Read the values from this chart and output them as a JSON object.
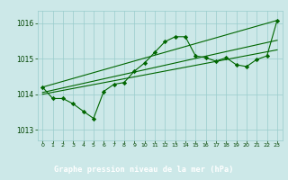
{
  "bg_color": "#cce8e8",
  "plot_bg_color": "#cce8e8",
  "label_bg_color": "#1a5c1a",
  "grid_color": "#99cccc",
  "line_color": "#006600",
  "marker_color": "#006600",
  "title": "Graphe pression niveau de la mer (hPa)",
  "title_color": "#ffffff",
  "tick_color": "#004400",
  "xlim": [
    -0.5,
    23.5
  ],
  "ylim": [
    1012.7,
    1016.35
  ],
  "yticks": [
    1013,
    1014,
    1015,
    1016
  ],
  "xticks": [
    0,
    1,
    2,
    3,
    4,
    5,
    6,
    7,
    8,
    9,
    10,
    11,
    12,
    13,
    14,
    15,
    16,
    17,
    18,
    19,
    20,
    21,
    22,
    23
  ],
  "main_series": [
    [
      0,
      1014.2
    ],
    [
      1,
      1013.88
    ],
    [
      2,
      1013.88
    ],
    [
      3,
      1013.73
    ],
    [
      4,
      1013.52
    ],
    [
      5,
      1013.32
    ],
    [
      6,
      1014.08
    ],
    [
      7,
      1014.28
    ],
    [
      8,
      1014.33
    ],
    [
      9,
      1014.65
    ],
    [
      10,
      1014.88
    ],
    [
      11,
      1015.18
    ],
    [
      12,
      1015.48
    ],
    [
      13,
      1015.62
    ],
    [
      14,
      1015.62
    ],
    [
      15,
      1015.08
    ],
    [
      16,
      1015.03
    ],
    [
      17,
      1014.93
    ],
    [
      18,
      1015.03
    ],
    [
      19,
      1014.83
    ],
    [
      20,
      1014.78
    ],
    [
      21,
      1014.98
    ],
    [
      22,
      1015.08
    ],
    [
      23,
      1016.08
    ]
  ],
  "line1": [
    [
      0,
      1014.2
    ],
    [
      23,
      1016.08
    ]
  ],
  "line2": [
    [
      0,
      1014.05
    ],
    [
      23,
      1015.52
    ]
  ],
  "line3": [
    [
      0,
      1014.0
    ],
    [
      23,
      1015.25
    ]
  ]
}
